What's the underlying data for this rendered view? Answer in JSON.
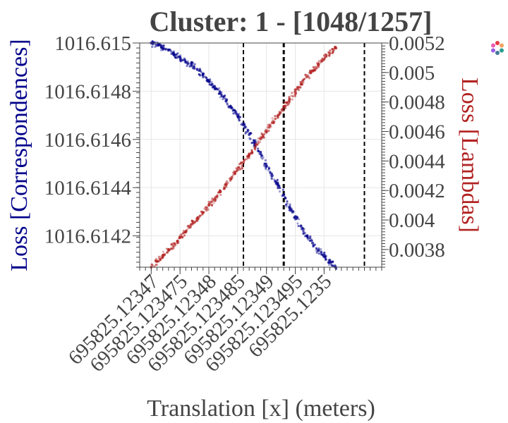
{
  "chart_data": {
    "type": "scatter",
    "title": "Cluster: 1 - [1048/1257]",
    "xlabel": "Translation [x] (meters)",
    "ylabel_left": "Loss [Correspondences]",
    "ylabel_right": "Loss [Lambdas]",
    "xlim": [
      695825.123468,
      695825.12351
    ],
    "ylim_left": [
      1016.61407,
      1016.615
    ],
    "ylim_right": [
      0.00368,
      0.0052
    ],
    "x_ticks": [
      {
        "value": 695825.12347,
        "label": "695825.12347"
      },
      {
        "value": 695825.123475,
        "label": "695825.123475"
      },
      {
        "value": 695825.12348,
        "label": "695825.12348"
      },
      {
        "value": 695825.123485,
        "label": "695825.123485"
      },
      {
        "value": 695825.12349,
        "label": "695825.12349"
      },
      {
        "value": 695825.123495,
        "label": "695825.123495"
      },
      {
        "value": 695825.1235,
        "label": "695825.1235"
      }
    ],
    "y_left_ticks": [
      {
        "value": 1016.615,
        "label": "1016.615"
      },
      {
        "value": 1016.6148,
        "label": "1016.6148"
      },
      {
        "value": 1016.6146,
        "label": "1016.6146"
      },
      {
        "value": 1016.6144,
        "label": "1016.6144"
      },
      {
        "value": 1016.6142,
        "label": "1016.6142"
      }
    ],
    "y_right_ticks": [
      {
        "value": 0.0052,
        "label": "0.0052"
      },
      {
        "value": 0.005,
        "label": "0.005"
      },
      {
        "value": 0.0048,
        "label": "0.0048"
      },
      {
        "value": 0.0046,
        "label": "0.0046"
      },
      {
        "value": 0.0044,
        "label": "0.0044"
      },
      {
        "value": 0.0042,
        "label": "0.0042"
      },
      {
        "value": 0.004,
        "label": "0.004"
      },
      {
        "value": 0.0038,
        "label": "0.0038"
      }
    ],
    "vlines": [
      {
        "x": 695825.123486,
        "style": "dashed"
      },
      {
        "x": 695825.123493,
        "style": "dashed-bold"
      },
      {
        "x": 695825.123507,
        "style": "dashed"
      }
    ],
    "series": [
      {
        "name": "Loss [Correspondences]",
        "axis": "left",
        "color": "#00008b",
        "points": [
          [
            695825.12347,
            1016.615
          ],
          [
            695825.123471,
            1016.61499
          ],
          [
            695825.123472,
            1016.61498
          ],
          [
            695825.123473,
            1016.61497
          ],
          [
            695825.123474,
            1016.61495
          ],
          [
            695825.123475,
            1016.61494
          ],
          [
            695825.123476,
            1016.61492
          ],
          [
            695825.123477,
            1016.61491
          ],
          [
            695825.123478,
            1016.61489
          ],
          [
            695825.123479,
            1016.61487
          ],
          [
            695825.12348,
            1016.61484
          ],
          [
            695825.123481,
            1016.61482
          ],
          [
            695825.123482,
            1016.61479
          ],
          [
            695825.123483,
            1016.61476
          ],
          [
            695825.123484,
            1016.61473
          ],
          [
            695825.123485,
            1016.6147
          ],
          [
            695825.123486,
            1016.61466
          ],
          [
            695825.123487,
            1016.61462
          ],
          [
            695825.123488,
            1016.61458
          ],
          [
            695825.123489,
            1016.61454
          ],
          [
            695825.12349,
            1016.61449
          ],
          [
            695825.123491,
            1016.61445
          ],
          [
            695825.123492,
            1016.61441
          ],
          [
            695825.123493,
            1016.61437
          ],
          [
            695825.123494,
            1016.61432
          ],
          [
            695825.123495,
            1016.61428
          ],
          [
            695825.123496,
            1016.61424
          ],
          [
            695825.123497,
            1016.6142
          ],
          [
            695825.123498,
            1016.61417
          ],
          [
            695825.123499,
            1016.61414
          ],
          [
            695825.1235,
            1016.61412
          ],
          [
            695825.123501,
            1016.61409
          ],
          [
            695825.123502,
            1016.61407
          ]
        ]
      },
      {
        "name": "Loss [Lambdas]",
        "axis": "right",
        "color": "#b22222",
        "points": [
          [
            695825.12347,
            0.00368
          ],
          [
            695825.123471,
            0.00372
          ],
          [
            695825.123472,
            0.00376
          ],
          [
            695825.123473,
            0.0038
          ],
          [
            695825.123474,
            0.00384
          ],
          [
            695825.123475,
            0.00388
          ],
          [
            695825.123476,
            0.00392
          ],
          [
            695825.123477,
            0.00397
          ],
          [
            695825.123478,
            0.00401
          ],
          [
            695825.123479,
            0.00405
          ],
          [
            695825.12348,
            0.0041
          ],
          [
            695825.123481,
            0.00414
          ],
          [
            695825.123482,
            0.00419
          ],
          [
            695825.123483,
            0.00424
          ],
          [
            695825.123484,
            0.00429
          ],
          [
            695825.123485,
            0.00434
          ],
          [
            695825.123486,
            0.00439
          ],
          [
            695825.123487,
            0.00444
          ],
          [
            695825.123488,
            0.00449
          ],
          [
            695825.123489,
            0.00455
          ],
          [
            695825.12349,
            0.0046
          ],
          [
            695825.123491,
            0.00466
          ],
          [
            695825.123492,
            0.00471
          ],
          [
            695825.123493,
            0.00477
          ],
          [
            695825.123494,
            0.00482
          ],
          [
            695825.123495,
            0.00487
          ],
          [
            695825.123496,
            0.00492
          ],
          [
            695825.123497,
            0.00497
          ],
          [
            695825.123498,
            0.00501
          ],
          [
            695825.123499,
            0.00505
          ],
          [
            695825.1235,
            0.00509
          ],
          [
            695825.123501,
            0.00513
          ],
          [
            695825.123502,
            0.00517
          ]
        ]
      }
    ],
    "grid": true,
    "legend": "none"
  }
}
